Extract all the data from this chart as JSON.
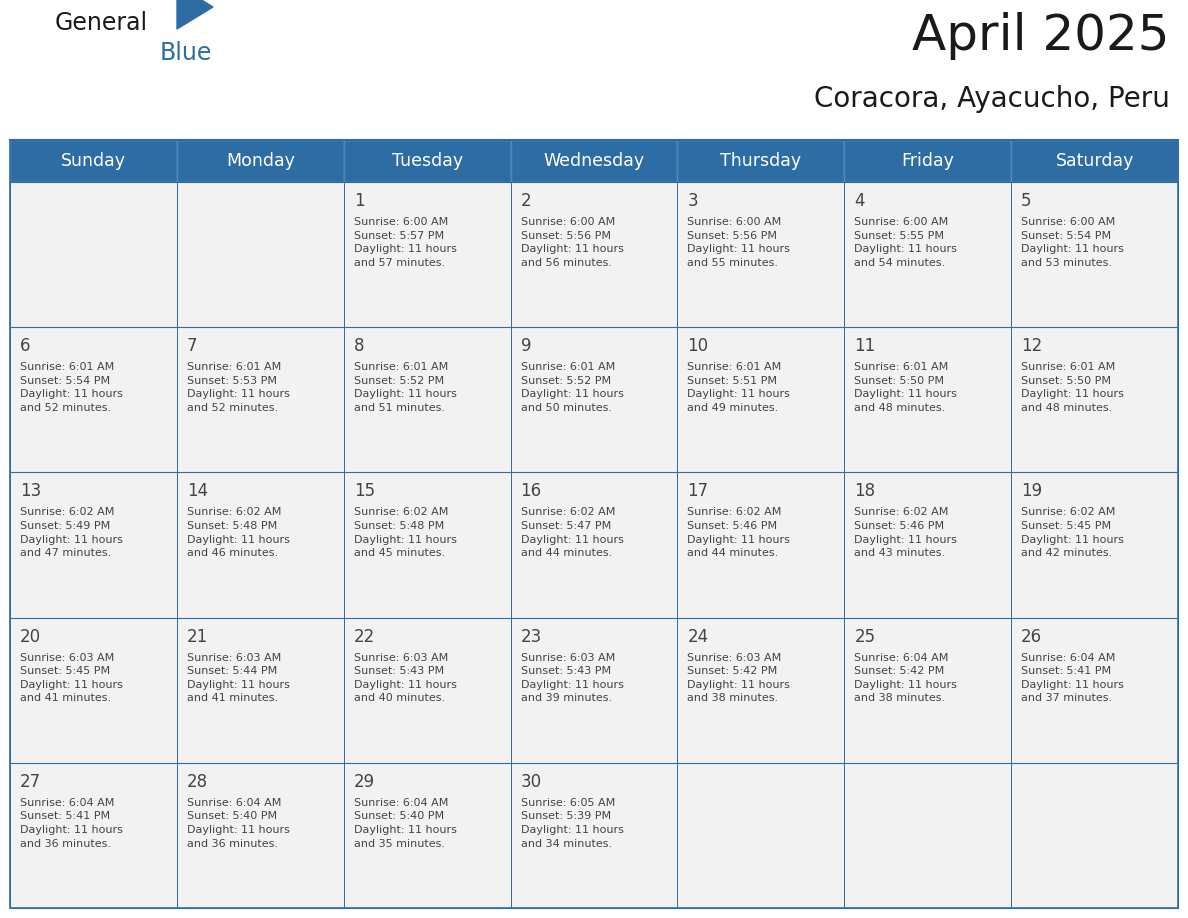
{
  "title": "April 2025",
  "subtitle": "Coracora, Ayacucho, Peru",
  "days_of_week": [
    "Sunday",
    "Monday",
    "Tuesday",
    "Wednesday",
    "Thursday",
    "Friday",
    "Saturday"
  ],
  "header_bg": "#2E6DA4",
  "header_text": "#FFFFFF",
  "cell_bg": "#F2F2F2",
  "cell_border": "#2E6DA4",
  "text_color": "#444444",
  "title_color": "#1a1a1a",
  "logo_color": "#2E6DA4",
  "weeks": [
    [
      {
        "date": "",
        "sunrise": "",
        "sunset": "",
        "daylight": ""
      },
      {
        "date": "",
        "sunrise": "",
        "sunset": "",
        "daylight": ""
      },
      {
        "date": "1",
        "sunrise": "6:00 AM",
        "sunset": "5:57 PM",
        "daylight": "11 hours\nand 57 minutes."
      },
      {
        "date": "2",
        "sunrise": "6:00 AM",
        "sunset": "5:56 PM",
        "daylight": "11 hours\nand 56 minutes."
      },
      {
        "date": "3",
        "sunrise": "6:00 AM",
        "sunset": "5:56 PM",
        "daylight": "11 hours\nand 55 minutes."
      },
      {
        "date": "4",
        "sunrise": "6:00 AM",
        "sunset": "5:55 PM",
        "daylight": "11 hours\nand 54 minutes."
      },
      {
        "date": "5",
        "sunrise": "6:00 AM",
        "sunset": "5:54 PM",
        "daylight": "11 hours\nand 53 minutes."
      }
    ],
    [
      {
        "date": "6",
        "sunrise": "6:01 AM",
        "sunset": "5:54 PM",
        "daylight": "11 hours\nand 52 minutes."
      },
      {
        "date": "7",
        "sunrise": "6:01 AM",
        "sunset": "5:53 PM",
        "daylight": "11 hours\nand 52 minutes."
      },
      {
        "date": "8",
        "sunrise": "6:01 AM",
        "sunset": "5:52 PM",
        "daylight": "11 hours\nand 51 minutes."
      },
      {
        "date": "9",
        "sunrise": "6:01 AM",
        "sunset": "5:52 PM",
        "daylight": "11 hours\nand 50 minutes."
      },
      {
        "date": "10",
        "sunrise": "6:01 AM",
        "sunset": "5:51 PM",
        "daylight": "11 hours\nand 49 minutes."
      },
      {
        "date": "11",
        "sunrise": "6:01 AM",
        "sunset": "5:50 PM",
        "daylight": "11 hours\nand 48 minutes."
      },
      {
        "date": "12",
        "sunrise": "6:01 AM",
        "sunset": "5:50 PM",
        "daylight": "11 hours\nand 48 minutes."
      }
    ],
    [
      {
        "date": "13",
        "sunrise": "6:02 AM",
        "sunset": "5:49 PM",
        "daylight": "11 hours\nand 47 minutes."
      },
      {
        "date": "14",
        "sunrise": "6:02 AM",
        "sunset": "5:48 PM",
        "daylight": "11 hours\nand 46 minutes."
      },
      {
        "date": "15",
        "sunrise": "6:02 AM",
        "sunset": "5:48 PM",
        "daylight": "11 hours\nand 45 minutes."
      },
      {
        "date": "16",
        "sunrise": "6:02 AM",
        "sunset": "5:47 PM",
        "daylight": "11 hours\nand 44 minutes."
      },
      {
        "date": "17",
        "sunrise": "6:02 AM",
        "sunset": "5:46 PM",
        "daylight": "11 hours\nand 44 minutes."
      },
      {
        "date": "18",
        "sunrise": "6:02 AM",
        "sunset": "5:46 PM",
        "daylight": "11 hours\nand 43 minutes."
      },
      {
        "date": "19",
        "sunrise": "6:02 AM",
        "sunset": "5:45 PM",
        "daylight": "11 hours\nand 42 minutes."
      }
    ],
    [
      {
        "date": "20",
        "sunrise": "6:03 AM",
        "sunset": "5:45 PM",
        "daylight": "11 hours\nand 41 minutes."
      },
      {
        "date": "21",
        "sunrise": "6:03 AM",
        "sunset": "5:44 PM",
        "daylight": "11 hours\nand 41 minutes."
      },
      {
        "date": "22",
        "sunrise": "6:03 AM",
        "sunset": "5:43 PM",
        "daylight": "11 hours\nand 40 minutes."
      },
      {
        "date": "23",
        "sunrise": "6:03 AM",
        "sunset": "5:43 PM",
        "daylight": "11 hours\nand 39 minutes."
      },
      {
        "date": "24",
        "sunrise": "6:03 AM",
        "sunset": "5:42 PM",
        "daylight": "11 hours\nand 38 minutes."
      },
      {
        "date": "25",
        "sunrise": "6:04 AM",
        "sunset": "5:42 PM",
        "daylight": "11 hours\nand 38 minutes."
      },
      {
        "date": "26",
        "sunrise": "6:04 AM",
        "sunset": "5:41 PM",
        "daylight": "11 hours\nand 37 minutes."
      }
    ],
    [
      {
        "date": "27",
        "sunrise": "6:04 AM",
        "sunset": "5:41 PM",
        "daylight": "11 hours\nand 36 minutes."
      },
      {
        "date": "28",
        "sunrise": "6:04 AM",
        "sunset": "5:40 PM",
        "daylight": "11 hours\nand 36 minutes."
      },
      {
        "date": "29",
        "sunrise": "6:04 AM",
        "sunset": "5:40 PM",
        "daylight": "11 hours\nand 35 minutes."
      },
      {
        "date": "30",
        "sunrise": "6:05 AM",
        "sunset": "5:39 PM",
        "daylight": "11 hours\nand 34 minutes."
      },
      {
        "date": "",
        "sunrise": "",
        "sunset": "",
        "daylight": ""
      },
      {
        "date": "",
        "sunrise": "",
        "sunset": "",
        "daylight": ""
      },
      {
        "date": "",
        "sunrise": "",
        "sunset": "",
        "daylight": ""
      }
    ]
  ]
}
